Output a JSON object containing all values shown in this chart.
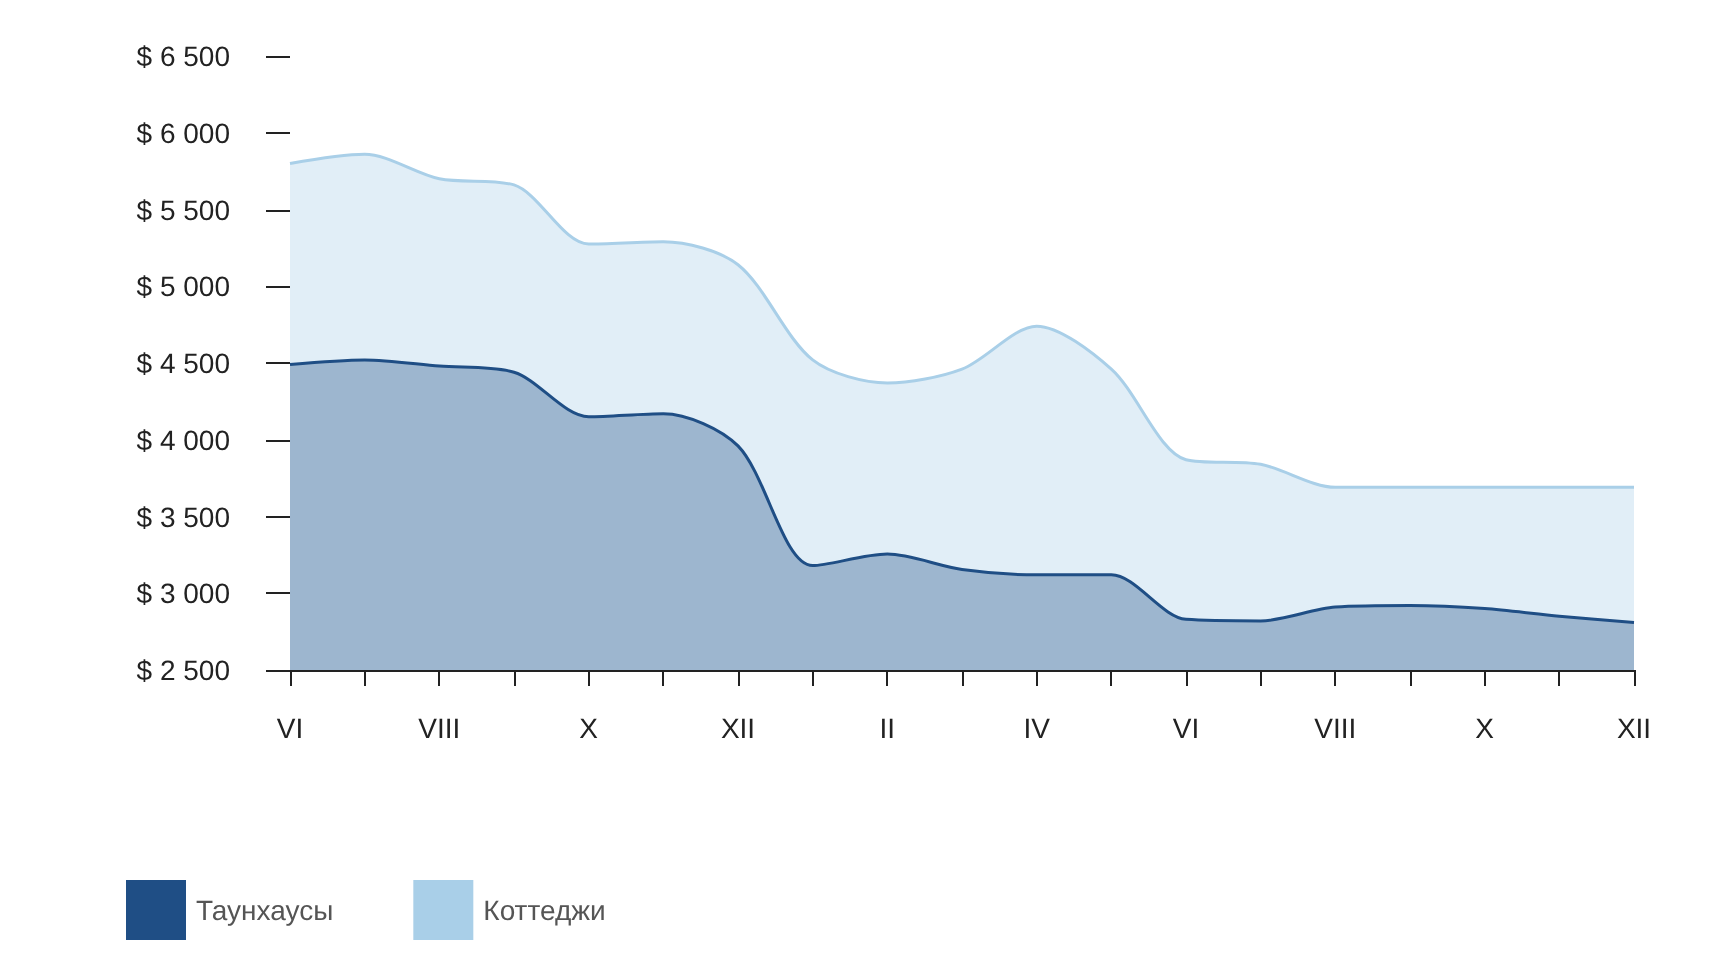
{
  "chart_data": {
    "type": "area",
    "categories": [
      "VI",
      null,
      "VIII",
      null,
      "X",
      null,
      "XII",
      null,
      "II",
      null,
      "IV",
      null,
      "VI",
      null,
      "VIII",
      null,
      "X",
      null,
      "XII"
    ],
    "series": [
      {
        "name": "Таунхаусы",
        "color": "#1f4e85",
        "values": [
          4490,
          4520,
          4480,
          4440,
          4150,
          4170,
          3960,
          3180,
          3255,
          3155,
          3120,
          3120,
          2830,
          2820,
          2910,
          2920,
          2900,
          2850,
          2810
        ]
      },
      {
        "name": "Коттеджи",
        "color": "#a9cfe8",
        "values": [
          5800,
          5860,
          5700,
          5660,
          5275,
          5290,
          5140,
          4520,
          4370,
          4460,
          4740,
          4460,
          3870,
          3840,
          3690,
          3690,
          3690,
          3690,
          3690
        ]
      }
    ],
    "ylim": [
      2500,
      6500
    ],
    "yticks": [
      {
        "value": 2500,
        "label": "$ 2 500"
      },
      {
        "value": 3000,
        "label": "$ 3 000"
      },
      {
        "value": 3500,
        "label": "$ 3 500"
      },
      {
        "value": 4000,
        "label": "$ 4 000"
      },
      {
        "value": 4500,
        "label": "$ 4 500"
      },
      {
        "value": 5000,
        "label": "$ 5 000"
      },
      {
        "value": 5500,
        "label": "$ 5 500"
      },
      {
        "value": 6000,
        "label": "$ 6 000"
      },
      {
        "value": 6500,
        "label": "$ 6 500"
      }
    ],
    "grid": false,
    "legend": "bottom left",
    "marker": "none"
  }
}
